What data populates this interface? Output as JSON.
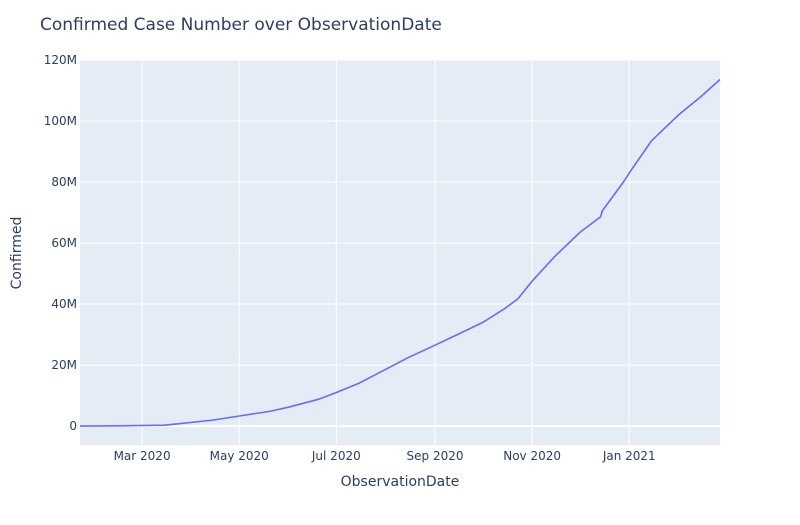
{
  "chart_data": {
    "type": "line",
    "title": "Confirmed Case Number over ObservationDate",
    "xlabel": "ObservationDate",
    "ylabel": "Confirmed",
    "x_tick_labels": [
      "Mar 2020",
      "May 2020",
      "Jul 2020",
      "Sep 2020",
      "Nov 2020",
      "Jan 2021"
    ],
    "x_tick_dates": [
      "2020-03-01",
      "2020-05-01",
      "2020-07-01",
      "2020-09-01",
      "2020-11-01",
      "2021-01-01"
    ],
    "xlim": [
      "2020-01-22",
      "2021-02-27"
    ],
    "y_tick_labels": [
      "0",
      "20M",
      "40M",
      "60M",
      "80M",
      "100M",
      "120M"
    ],
    "y_tick_values": [
      0,
      20000000,
      40000000,
      60000000,
      80000000,
      100000000,
      120000000
    ],
    "ylim": [
      -6200000,
      120000000
    ],
    "grid": true,
    "colors": {
      "plot_background": "#e5ecf6",
      "grid": "#ffffff",
      "line": "#636efa",
      "text": "#2a3f5f"
    },
    "series": [
      {
        "x": [
          "2020-01-22",
          "2020-02-15",
          "2020-03-15",
          "2020-03-25",
          "2020-04-15",
          "2020-05-01",
          "2020-05-20",
          "2020-06-01",
          "2020-06-20",
          "2020-07-01",
          "2020-07-15",
          "2020-08-01",
          "2020-08-15",
          "2020-09-01",
          "2020-09-15",
          "2020-10-01",
          "2020-10-15",
          "2020-10-23",
          "2020-11-01",
          "2020-11-15",
          "2020-12-01",
          "2020-12-14",
          "2020-12-15",
          "2020-12-29",
          "2021-01-01",
          "2021-01-15",
          "2021-02-01",
          "2021-02-15",
          "2021-02-27"
        ],
        "y": [
          500,
          100000,
          300000,
          800000,
          2000000,
          3300000,
          4800000,
          6200000,
          8800000,
          11000000,
          14000000,
          18600000,
          22400000,
          26500000,
          30000000,
          34000000,
          38600000,
          41700000,
          47500000,
          55500000,
          63500000,
          68600000,
          70500000,
          80500000,
          83000000,
          93500000,
          102000000,
          108000000,
          113600000
        ]
      }
    ]
  }
}
